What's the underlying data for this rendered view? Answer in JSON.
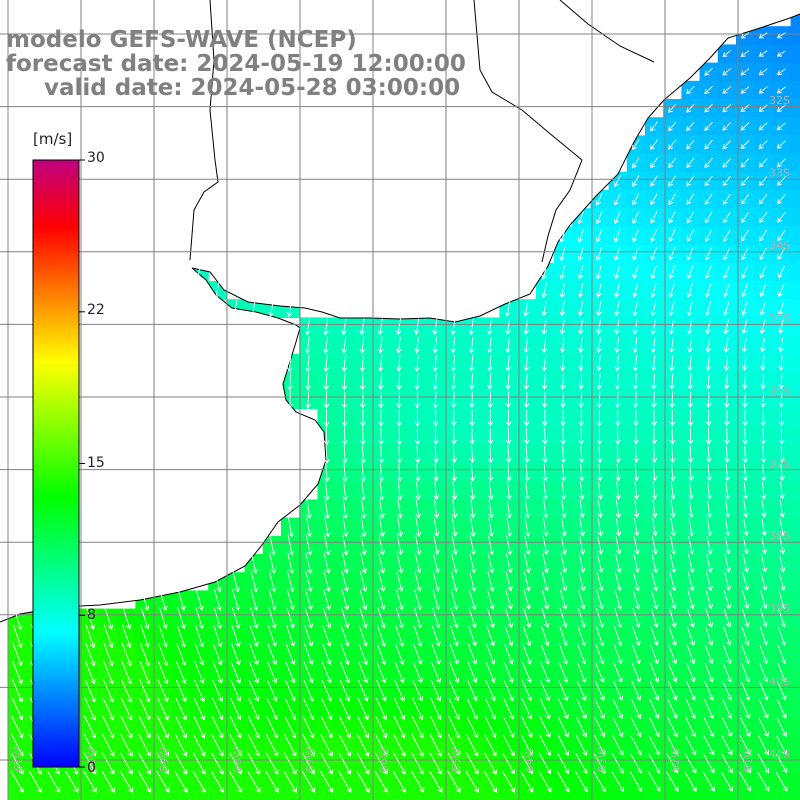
{
  "title": {
    "line1": "modelo GEFS-WAVE (NCEP)",
    "line2": "forecast date: 2024-05-19 12:00:00",
    "line3": "valid date: 2024-05-28 03:00:00"
  },
  "colorbar": {
    "unit": "[m/s]",
    "min": 0,
    "max": 30,
    "tick_labels": [
      "30",
      "22",
      "15",
      "8",
      "0"
    ],
    "tick_values": [
      30,
      22.5,
      15,
      7.5,
      0
    ],
    "colors": [
      "#0000ff",
      "#0080ff",
      "#00ffff",
      "#00ff80",
      "#00ff00",
      "#80ff00",
      "#ffff00",
      "#ff8000",
      "#ff0000",
      "#c00080"
    ]
  },
  "map": {
    "region": "South America, Río de la Plata / southern Brazil coast",
    "lat_labels": [
      "32S",
      "33S",
      "34S",
      "35S",
      "36S",
      "37S",
      "38S",
      "39S",
      "40S",
      "41S"
    ],
    "lon_labels": [
      "61W",
      "60W",
      "59W",
      "58W",
      "57W",
      "56W",
      "55W",
      "54W",
      "53W",
      "52W",
      "51W"
    ],
    "land_color": "#ffffff",
    "grid_color": "#808080",
    "arrow_color": "#ffffff",
    "wind_direction": "from north-northwest toward south-southeast (westward-trending near the northeast)",
    "speed_pattern": "about 4-6 m/s in the northeast, 8-10 m/s mid-region, 11-14 m/s in the south and southwest"
  }
}
